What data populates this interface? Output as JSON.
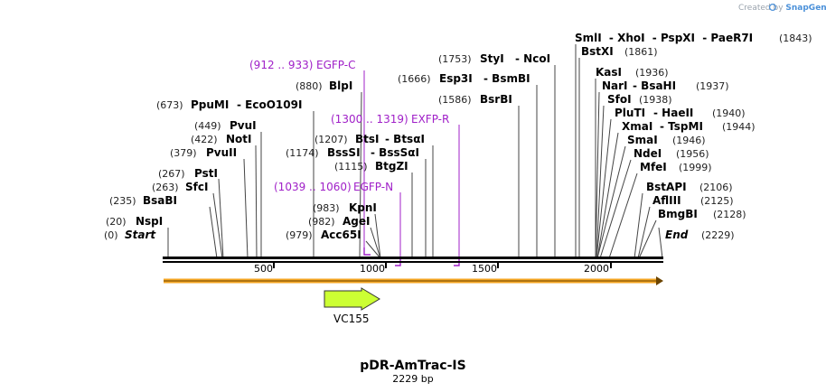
{
  "credit": {
    "prefix": "Created by",
    "brand": "SnapGene"
  },
  "plasmid": {
    "name": "pDR-AmTrac-IS",
    "length_label": "2229 bp",
    "length": 2229
  },
  "ends": {
    "start": {
      "pos": "(0)",
      "label": "Start"
    },
    "end": {
      "pos": "(2229)",
      "label": "End"
    }
  },
  "ticks": [
    "500",
    "1000",
    "1500",
    "2000"
  ],
  "feature": {
    "name": "VC155",
    "color": "#ccff33"
  },
  "colors": {
    "primer": "#a020c8",
    "backbone_arrow": "#f5a623"
  },
  "left_sites": [
    {
      "pos": "(20)",
      "name": "NspI",
      "loc": 20
    },
    {
      "pos": "(235)",
      "name": "BsaBI",
      "loc": 235
    },
    {
      "pos": "(263)",
      "name": "SfcI",
      "loc": 263
    },
    {
      "pos": "(267)",
      "name": "PstI",
      "loc": 267
    },
    {
      "pos": "(379)",
      "name": "PvuII",
      "loc": 379
    },
    {
      "pos": "(422)",
      "name": "NotI",
      "loc": 422
    },
    {
      "pos": "(449)",
      "name": "PvuI",
      "loc": 449
    },
    {
      "pos": "(673)",
      "name": "PpuMI",
      "name2": "EcoO109I",
      "loc": 673
    }
  ],
  "mid_sites": [
    {
      "pos": "(979)",
      "name": "Acc65I",
      "loc": 979
    },
    {
      "pos": "(982)",
      "name": "AgeI",
      "loc": 982
    },
    {
      "pos": "(983)",
      "name": "KpnI",
      "loc": 983
    },
    {
      "pos": "(1115)",
      "name": "BtgZI",
      "loc": 1115
    },
    {
      "pos": "(1174)",
      "name": "BssSI",
      "name2": "BssSαI",
      "loc": 1174
    },
    {
      "pos": "(1207)",
      "name": "BtsI",
      "name2": "BtsαI",
      "loc": 1207
    },
    {
      "pos": "(880)",
      "name": "BlpI",
      "loc": 880
    },
    {
      "pos": "(1586)",
      "name": "BsrBI",
      "loc": 1586
    },
    {
      "pos": "(1666)",
      "name": "Esp3I",
      "name2": "BsmBI",
      "loc": 1666
    },
    {
      "pos": "(1753)",
      "name": "StyI",
      "name2": "NcoI",
      "loc": 1753
    }
  ],
  "right_top": [
    {
      "pos": "(1843)",
      "names": [
        "SmlI",
        "XhoI",
        "PspXI",
        "PaeR7I"
      ],
      "loc": 1843
    },
    {
      "pos": "(1861)",
      "names": [
        "BstXI"
      ],
      "loc": 1861
    }
  ],
  "right_sites": [
    {
      "pos": "(1936)",
      "name": "KasI",
      "loc": 1936
    },
    {
      "pos": "(1937)",
      "name": "NarI",
      "name2": "BsaHI",
      "loc": 1937
    },
    {
      "pos": "(1938)",
      "name": "SfoI",
      "loc": 1938
    },
    {
      "pos": "(1940)",
      "name": "PluTI",
      "name2": "HaeII",
      "loc": 1940
    },
    {
      "pos": "(1944)",
      "name": "XmaI",
      "name2": "TspMI",
      "loc": 1944
    },
    {
      "pos": "(1946)",
      "name": "SmaI",
      "loc": 1946
    },
    {
      "pos": "(1956)",
      "name": "NdeI",
      "loc": 1956
    },
    {
      "pos": "(1999)",
      "name": "MfeI",
      "loc": 1999
    },
    {
      "pos": "(2106)",
      "name": "BstAPI",
      "loc": 2106
    },
    {
      "pos": "(2125)",
      "name": "AflIII",
      "loc": 2125
    },
    {
      "pos": "(2128)",
      "name": "BmgBI",
      "loc": 2128
    }
  ],
  "primers": [
    {
      "range": "(912 .. 933)",
      "name": "EGFP-C",
      "loc": 912
    },
    {
      "range": "(1300 .. 1319)",
      "name": "EXFP-R",
      "loc": 1300
    },
    {
      "range": "(1039 .. 1060)",
      "name": "EGFP-N",
      "loc": 1039
    }
  ]
}
